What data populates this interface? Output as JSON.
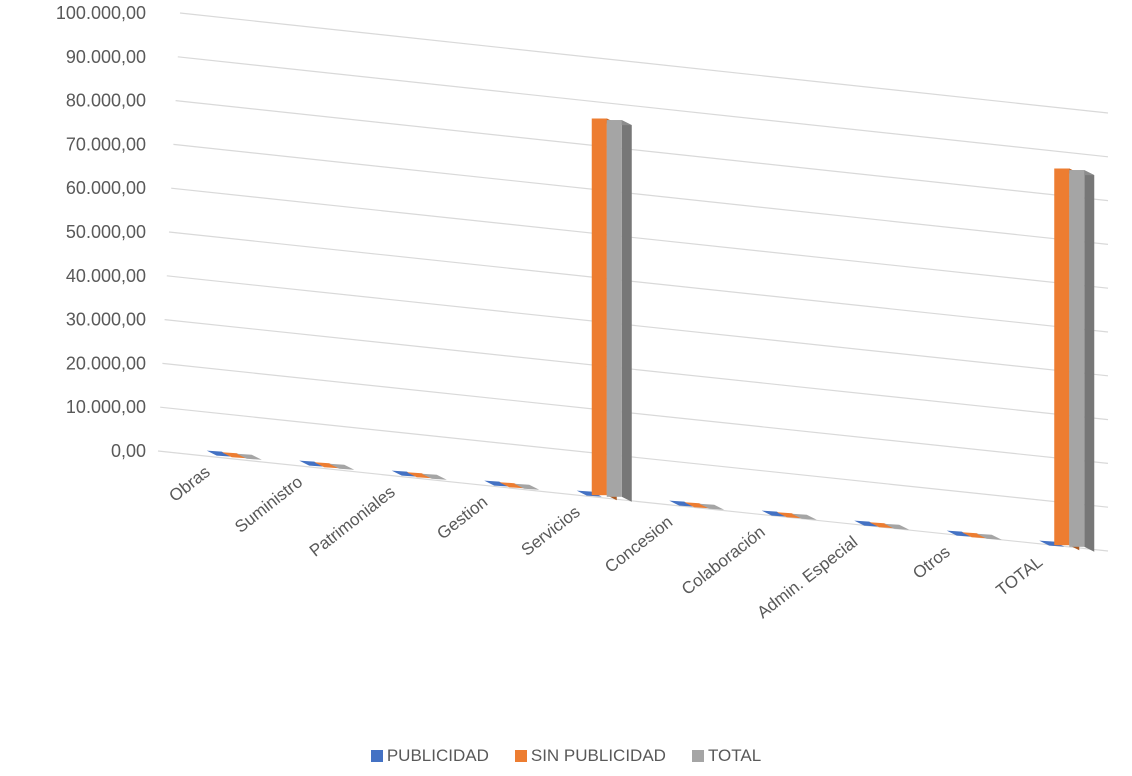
{
  "chart_data": {
    "type": "bar",
    "title": "",
    "xlabel": "",
    "ylabel": "",
    "ylim": [
      0,
      100000
    ],
    "yticks": [
      "0,00",
      "10.000,00",
      "20.000,00",
      "30.000,00",
      "40.000,00",
      "50.000,00",
      "60.000,00",
      "70.000,00",
      "80.000,00",
      "90.000,00",
      "100.000,00"
    ],
    "categories": [
      "Obras",
      "Suministro",
      "Patrimoniales",
      "Gestion",
      "Servicios",
      "Concesion",
      "Colaboración",
      "Admin. Especial",
      "Otros",
      "TOTAL"
    ],
    "series": [
      {
        "name": "PUBLICIDAD",
        "color": "#4472c4",
        "values": [
          0,
          0,
          0,
          0,
          0,
          0,
          0,
          0,
          0,
          0
        ]
      },
      {
        "name": "SIN PUBLICIDAD",
        "color": "#ed7d31",
        "values": [
          0,
          0,
          0,
          0,
          86000,
          0,
          0,
          0,
          0,
          86000
        ]
      },
      {
        "name": "TOTAL",
        "color": "#a5a5a5",
        "values": [
          0,
          0,
          0,
          0,
          86000,
          0,
          0,
          0,
          0,
          86000
        ]
      }
    ],
    "grid": true,
    "legend_position": "bottom"
  }
}
